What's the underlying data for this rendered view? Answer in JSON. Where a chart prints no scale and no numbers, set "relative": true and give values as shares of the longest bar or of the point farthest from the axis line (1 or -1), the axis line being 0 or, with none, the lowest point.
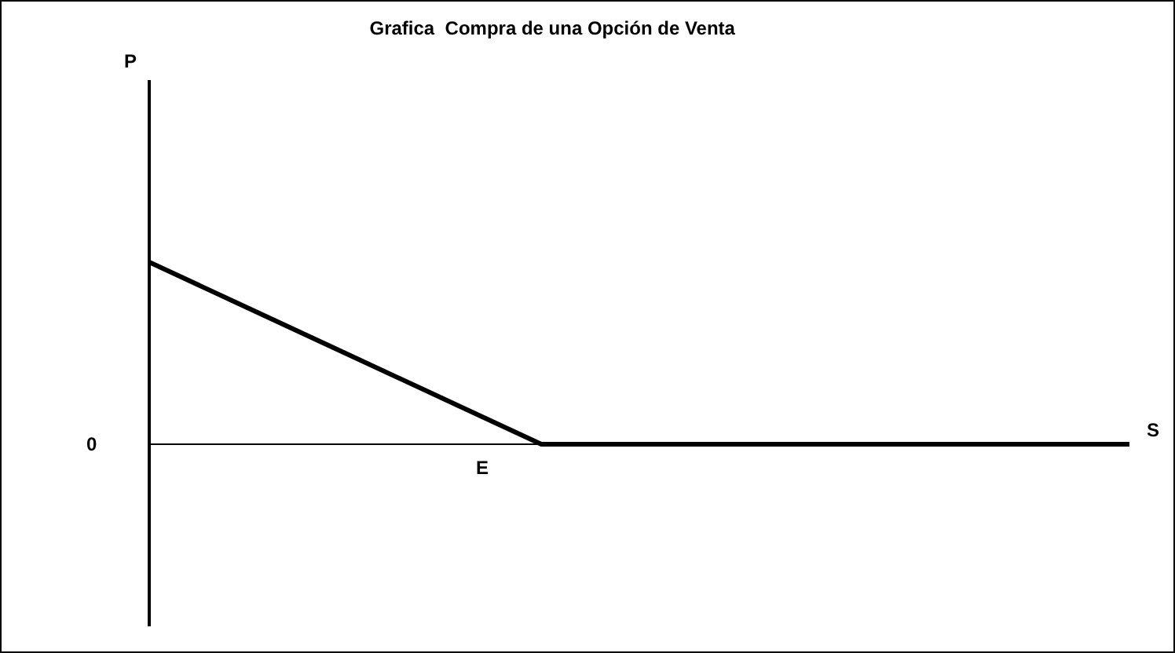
{
  "chart_data": {
    "type": "line",
    "title": "Grafica  Compra de una Opción de Venta",
    "relative": true,
    "categories": [
      null,
      null,
      null,
      null,
      null,
      null,
      null,
      null,
      null,
      null,
      null
    ],
    "series": [
      {
        "color": "#000000",
        "values": [
          1,
          0.75,
          0.5,
          0.25,
          0,
          0,
          0,
          0,
          0,
          0,
          0
        ]
      }
    ],
    "annotations": [
      "P",
      "0",
      "E",
      "S"
    ],
    "grid": false,
    "marker": "none",
    "line_style": "solid"
  }
}
